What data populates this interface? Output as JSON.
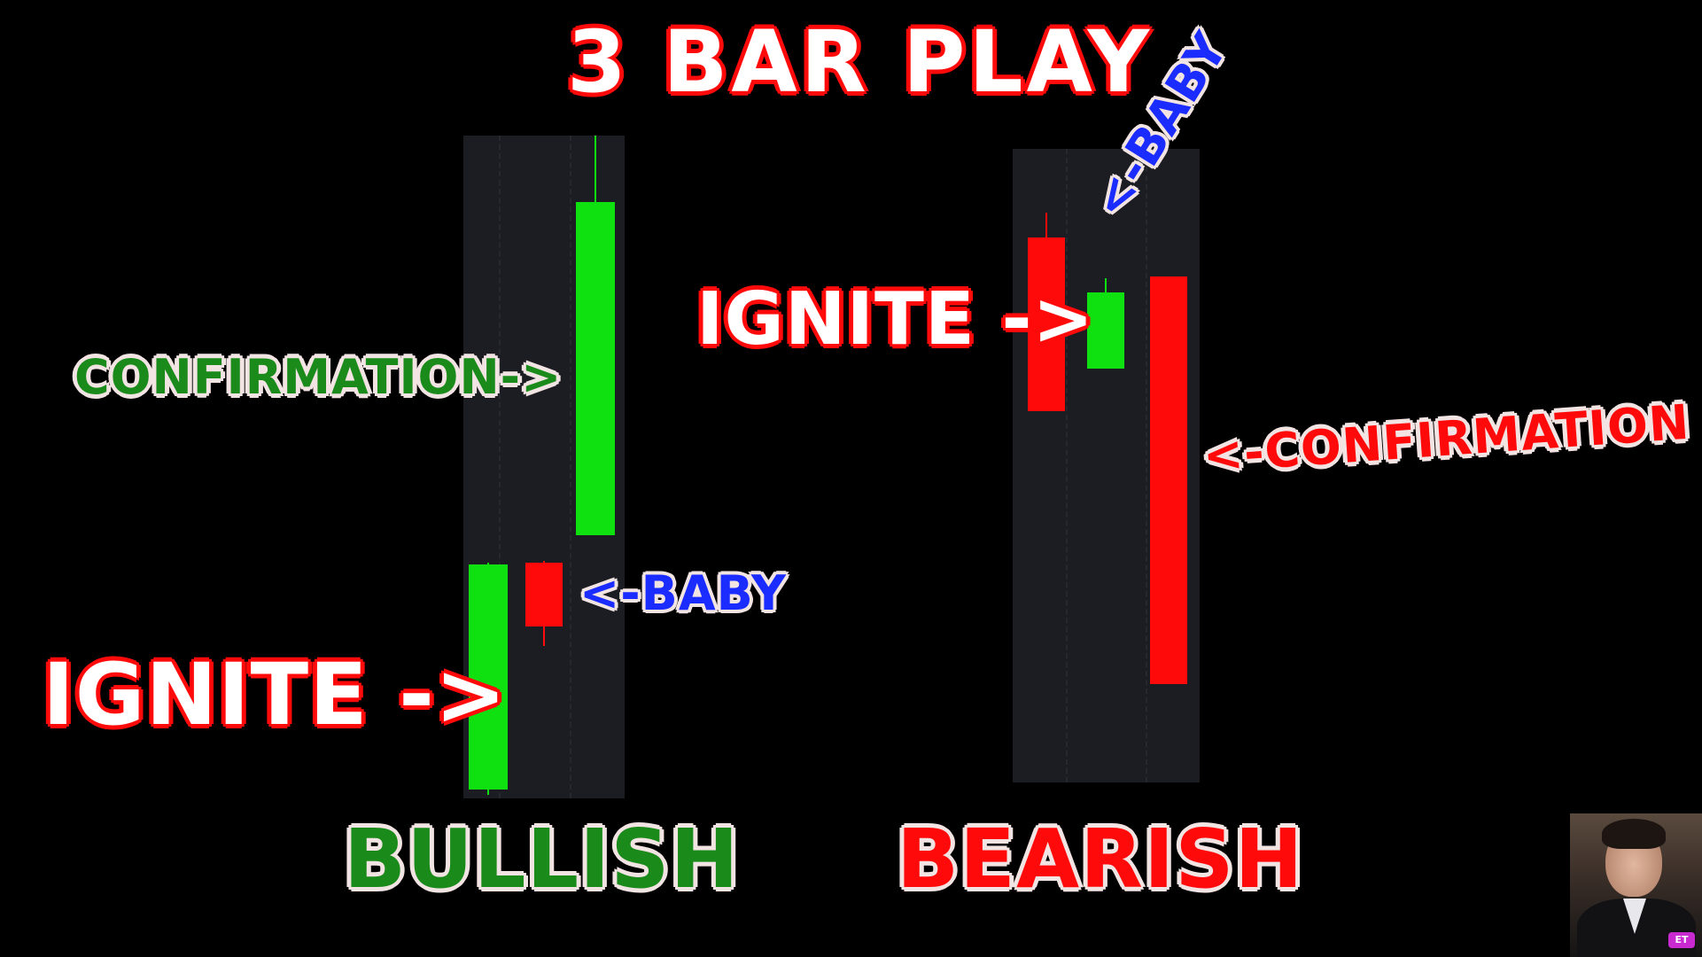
{
  "title": "3 BAR PLAY",
  "bullish": {
    "heading": "BULLISH",
    "labels": {
      "ignite": "IGNITE ->",
      "baby": "<-BABY",
      "confirmation": "CONFIRMATION->"
    },
    "colors": {
      "up": "#0fe00f",
      "down": "#ff0a0a"
    }
  },
  "bearish": {
    "heading": "BEARISH",
    "labels": {
      "ignite": "IGNITE ->",
      "baby": "<-BABY",
      "confirmation": "<-CONFIRMATION"
    },
    "colors": {
      "up": "#0fe00f",
      "down": "#ff0a0a"
    }
  },
  "webcam": {
    "logo": "ET"
  }
}
